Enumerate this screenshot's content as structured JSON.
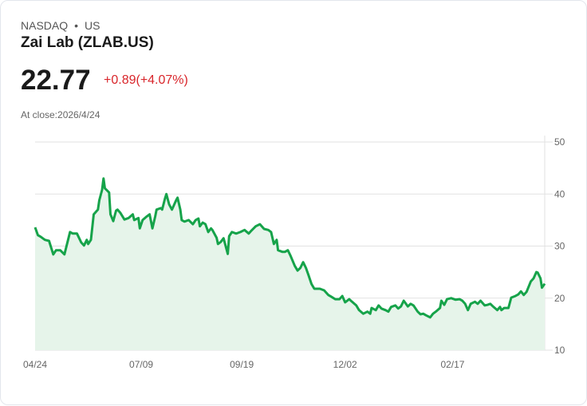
{
  "header": {
    "exchange": "NASDAQ",
    "separator": "•",
    "market": "US",
    "title": "Zai Lab (ZLAB.US)",
    "price": "22.77",
    "change": "+0.89(+4.07%)",
    "close_label": "At close:2026/4/24"
  },
  "colors": {
    "line": "#16a34a",
    "fill": "#e6f4ea",
    "change": "#d9262b",
    "grid": "#e2e2e2"
  },
  "chart_data": {
    "type": "area",
    "title": "",
    "xlabel": "",
    "ylabel": "",
    "ylim": [
      10,
      50
    ],
    "xlim_days": [
      0,
      365
    ],
    "yticks": [
      10,
      20,
      30,
      40,
      50
    ],
    "xticks": [
      {
        "day": 0,
        "label": "04/24"
      },
      {
        "day": 76,
        "label": "07/09"
      },
      {
        "day": 148,
        "label": "09/19"
      },
      {
        "day": 222,
        "label": "12/02"
      },
      {
        "day": 299,
        "label": "02/17"
      }
    ],
    "grid": true,
    "x_unit": "days since 2025/4/24",
    "x": [
      0,
      2,
      4,
      7,
      10,
      13,
      15,
      18,
      21,
      25,
      27,
      30,
      33,
      35,
      37,
      38,
      40,
      42,
      45,
      46,
      48,
      49,
      50,
      53,
      54,
      56,
      58,
      59,
      61,
      64,
      67,
      70,
      71,
      74,
      75,
      77,
      80,
      82,
      84,
      86,
      87,
      90,
      91,
      93,
      94,
      96,
      98,
      101,
      102,
      104,
      105,
      107,
      110,
      113,
      115,
      117,
      118,
      120,
      122,
      124,
      126,
      127,
      130,
      131,
      133,
      135,
      138,
      139,
      141,
      144,
      147,
      150,
      153,
      155,
      158,
      161,
      164,
      167,
      169,
      171,
      173,
      174,
      177,
      179,
      181,
      183,
      186,
      188,
      190,
      192,
      194,
      196,
      198,
      200,
      204,
      207,
      210,
      212,
      215,
      218,
      220,
      222,
      225,
      227,
      230,
      232,
      235,
      238,
      240,
      241,
      244,
      246,
      248,
      251,
      253,
      255,
      258,
      260,
      262,
      264,
      267,
      269,
      271,
      274,
      276,
      278,
      280,
      283,
      285,
      287,
      290,
      291,
      293,
      295,
      298,
      301,
      304,
      306,
      308,
      310,
      312,
      315,
      317,
      319,
      322,
      324,
      326,
      328,
      331,
      333,
      334,
      336,
      339,
      341,
      344,
      346,
      348,
      350,
      352,
      355,
      357,
      359,
      360,
      362,
      363,
      365
    ],
    "y": [
      33.6,
      32.1,
      31.8,
      31.2,
      31.0,
      28.4,
      29.2,
      29.2,
      28.4,
      32.7,
      32.4,
      32.4,
      30.7,
      30.1,
      31.2,
      30.4,
      31.2,
      36.1,
      37.0,
      38.8,
      40.8,
      43.0,
      41.1,
      40.3,
      36.1,
      34.8,
      36.8,
      37.0,
      36.4,
      35.1,
      35.4,
      36.1,
      35.0,
      35.4,
      33.4,
      35.0,
      35.7,
      36.1,
      33.4,
      35.7,
      37.0,
      37.3,
      37.0,
      39.1,
      40.0,
      38.0,
      37.0,
      38.8,
      39.3,
      37.0,
      35.0,
      34.7,
      35.0,
      34.2,
      35.0,
      35.3,
      33.8,
      34.5,
      34.2,
      32.7,
      33.4,
      33.1,
      31.6,
      30.4,
      30.8,
      31.5,
      28.5,
      31.9,
      32.7,
      32.4,
      32.7,
      33.1,
      32.4,
      33.0,
      33.8,
      34.2,
      33.3,
      33.1,
      32.7,
      30.4,
      31.2,
      29.2,
      28.9,
      28.9,
      29.2,
      28.1,
      26.2,
      25.3,
      25.8,
      26.9,
      25.8,
      24.3,
      22.7,
      21.8,
      21.8,
      21.5,
      20.6,
      20.3,
      19.8,
      19.8,
      20.4,
      19.2,
      19.8,
      19.3,
      18.6,
      17.7,
      17.0,
      17.4,
      17.0,
      18.1,
      17.7,
      18.6,
      18.0,
      17.7,
      17.4,
      18.3,
      18.6,
      18.0,
      18.4,
      19.5,
      18.4,
      18.9,
      18.6,
      17.4,
      16.9,
      17.0,
      16.7,
      16.3,
      17.0,
      17.4,
      18.1,
      19.5,
      18.7,
      19.8,
      20.0,
      19.7,
      19.8,
      19.5,
      18.9,
      17.7,
      18.9,
      19.3,
      18.9,
      19.5,
      18.6,
      18.7,
      18.9,
      18.4,
      17.7,
      18.3,
      17.7,
      18.1,
      18.1,
      20.1,
      20.4,
      20.7,
      21.3,
      20.6,
      21.2,
      23.2,
      23.8,
      25.0,
      24.9,
      23.8,
      22.0,
      22.77
    ]
  }
}
